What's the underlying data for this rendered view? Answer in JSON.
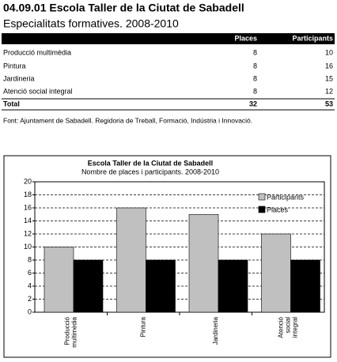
{
  "header": {
    "title": "04.09.01 Escola Taller de la Ciutat de Sabadell",
    "subtitle": "Especialitats formatives. 2008-2010"
  },
  "table": {
    "columns": [
      "Places",
      "Participants"
    ],
    "rows": [
      [
        "Producció multimèdia",
        8,
        10
      ],
      [
        "Pintura",
        8,
        16
      ],
      [
        "Jardineria",
        8,
        15
      ],
      [
        "Atenció social integral",
        8,
        12
      ]
    ],
    "total": [
      "Total",
      32,
      53
    ]
  },
  "source": "Font: Ajuntament de Sabadell. Regidoria de Treball, Formació, Indústria i Innovació.",
  "chart_data": {
    "type": "bar",
    "title": "Escola Taller de la Ciutat de Sabadell",
    "subtitle": "Nombre de places i participants. 2008-2010",
    "categories": [
      "Producció multimèdia",
      "Pintura",
      "Jardineria",
      "Atenció social integral"
    ],
    "series": [
      {
        "name": "Participants",
        "color": "#c0c0c0",
        "values": [
          10,
          16,
          15,
          12
        ]
      },
      {
        "name": "Places",
        "color": "#000000",
        "values": [
          8,
          8,
          8,
          8
        ]
      }
    ],
    "ylim": [
      0,
      20
    ],
    "yticks": [
      0,
      2,
      4,
      6,
      8,
      10,
      12,
      14,
      16,
      18,
      20
    ],
    "grid": true,
    "legend": "upper-right"
  }
}
